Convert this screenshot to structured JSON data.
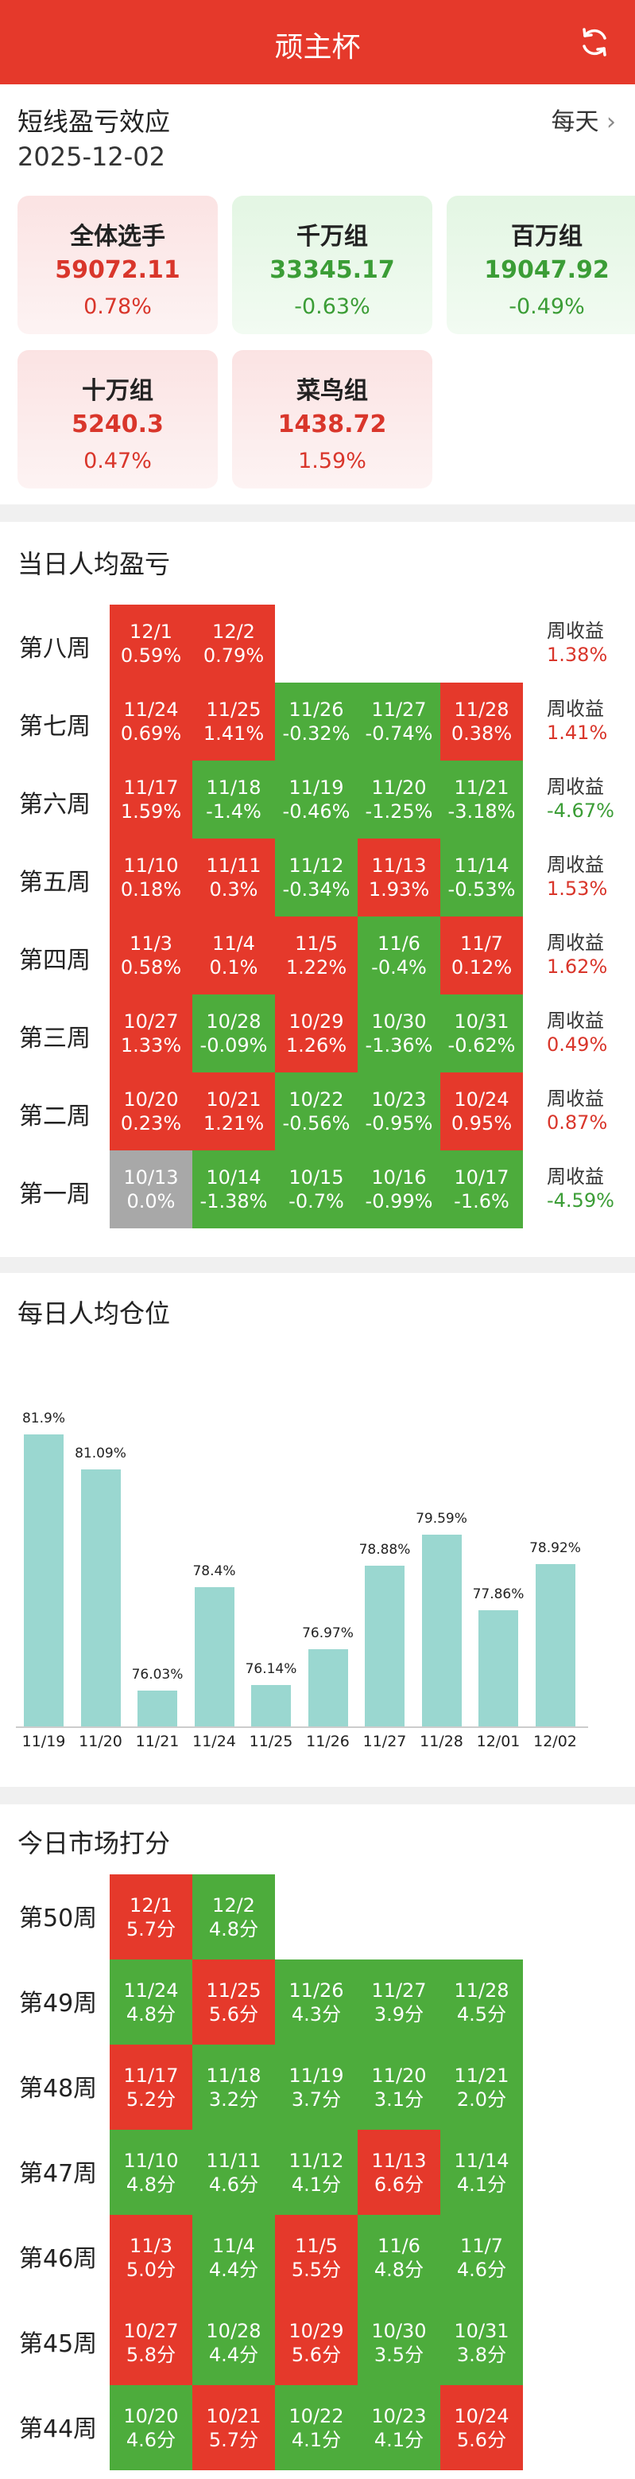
{
  "header": {
    "title": "顽主杯",
    "refresh_icon": "refresh-icon"
  },
  "summary": {
    "title": "短线盈亏效应",
    "date": "2025-12-02",
    "period": "每天",
    "groups": [
      {
        "name": "全体选手",
        "value": "59072.11",
        "pct": "0.78%",
        "dir": "up"
      },
      {
        "name": "千万组",
        "value": "33345.17",
        "pct": "-0.63%",
        "dir": "down"
      },
      {
        "name": "百万组",
        "value": "19047.92",
        "pct": "-0.49%",
        "dir": "down"
      },
      {
        "name": "十万组",
        "value": "5240.3",
        "pct": "0.47%",
        "dir": "up"
      },
      {
        "name": "菜鸟组",
        "value": "1438.72",
        "pct": "1.59%",
        "dir": "up"
      }
    ]
  },
  "pnl": {
    "title": "当日人均盈亏",
    "week_label": "周收益",
    "weeks": [
      {
        "name": "第八周",
        "total": "1.38%",
        "dir": "up",
        "days": [
          [
            "12/1",
            "0.59%",
            "up"
          ],
          [
            "12/2",
            "0.79%",
            "up"
          ]
        ]
      },
      {
        "name": "第七周",
        "total": "1.41%",
        "dir": "up",
        "days": [
          [
            "11/24",
            "0.69%",
            "up"
          ],
          [
            "11/25",
            "1.41%",
            "up"
          ],
          [
            "11/26",
            "-0.32%",
            "down"
          ],
          [
            "11/27",
            "-0.74%",
            "down"
          ],
          [
            "11/28",
            "0.38%",
            "up"
          ]
        ]
      },
      {
        "name": "第六周",
        "total": "-4.67%",
        "dir": "down",
        "days": [
          [
            "11/17",
            "1.59%",
            "up"
          ],
          [
            "11/18",
            "-1.4%",
            "down"
          ],
          [
            "11/19",
            "-0.46%",
            "down"
          ],
          [
            "11/20",
            "-1.25%",
            "down"
          ],
          [
            "11/21",
            "-3.18%",
            "down"
          ]
        ]
      },
      {
        "name": "第五周",
        "total": "1.53%",
        "dir": "up",
        "days": [
          [
            "11/10",
            "0.18%",
            "up"
          ],
          [
            "11/11",
            "0.3%",
            "up"
          ],
          [
            "11/12",
            "-0.34%",
            "down"
          ],
          [
            "11/13",
            "1.93%",
            "up"
          ],
          [
            "11/14",
            "-0.53%",
            "down"
          ]
        ]
      },
      {
        "name": "第四周",
        "total": "1.62%",
        "dir": "up",
        "days": [
          [
            "11/3",
            "0.58%",
            "up"
          ],
          [
            "11/4",
            "0.1%",
            "up"
          ],
          [
            "11/5",
            "1.22%",
            "up"
          ],
          [
            "11/6",
            "-0.4%",
            "down"
          ],
          [
            "11/7",
            "0.12%",
            "up"
          ]
        ]
      },
      {
        "name": "第三周",
        "total": "0.49%",
        "dir": "up",
        "days": [
          [
            "10/27",
            "1.33%",
            "up"
          ],
          [
            "10/28",
            "-0.09%",
            "down"
          ],
          [
            "10/29",
            "1.26%",
            "up"
          ],
          [
            "10/30",
            "-1.36%",
            "down"
          ],
          [
            "10/31",
            "-0.62%",
            "down"
          ]
        ]
      },
      {
        "name": "第二周",
        "total": "0.87%",
        "dir": "up",
        "days": [
          [
            "10/20",
            "0.23%",
            "up"
          ],
          [
            "10/21",
            "1.21%",
            "up"
          ],
          [
            "10/22",
            "-0.56%",
            "down"
          ],
          [
            "10/23",
            "-0.95%",
            "down"
          ],
          [
            "10/24",
            "0.95%",
            "up"
          ]
        ]
      },
      {
        "name": "第一周",
        "total": "-4.59%",
        "dir": "down",
        "days": [
          [
            "10/13",
            "0.0%",
            "flat"
          ],
          [
            "10/14",
            "-1.38%",
            "down"
          ],
          [
            "10/15",
            "-0.7%",
            "down"
          ],
          [
            "10/16",
            "-0.99%",
            "down"
          ],
          [
            "10/17",
            "-1.6%",
            "down"
          ]
        ]
      }
    ]
  },
  "position": {
    "title": "每日人均仓位",
    "chart_data": {
      "type": "bar",
      "categories": [
        "11/19",
        "11/20",
        "11/21",
        "11/24",
        "11/25",
        "11/26",
        "11/27",
        "11/28",
        "12/01",
        "12/02"
      ],
      "values": [
        81.9,
        81.09,
        76.03,
        78.4,
        76.14,
        76.97,
        78.88,
        79.59,
        77.86,
        78.92
      ],
      "labels": [
        "81.9%",
        "81.09%",
        "76.03%",
        "78.4%",
        "76.14%",
        "76.97%",
        "78.88%",
        "79.59%",
        "77.86%",
        "78.92%"
      ],
      "ylim": [
        75.2,
        82.5
      ],
      "color": "#9ad7d0"
    }
  },
  "score": {
    "title": "今日市场打分",
    "weeks": [
      {
        "name": "第50周",
        "days": [
          [
            "12/1",
            "5.7分",
            "up"
          ],
          [
            "12/2",
            "4.8分",
            "down"
          ]
        ]
      },
      {
        "name": "第49周",
        "days": [
          [
            "11/24",
            "4.8分",
            "down"
          ],
          [
            "11/25",
            "5.6分",
            "up"
          ],
          [
            "11/26",
            "4.3分",
            "down"
          ],
          [
            "11/27",
            "3.9分",
            "down"
          ],
          [
            "11/28",
            "4.5分",
            "down"
          ]
        ]
      },
      {
        "name": "第48周",
        "days": [
          [
            "11/17",
            "5.2分",
            "up"
          ],
          [
            "11/18",
            "3.2分",
            "down"
          ],
          [
            "11/19",
            "3.7分",
            "down"
          ],
          [
            "11/20",
            "3.1分",
            "down"
          ],
          [
            "11/21",
            "2.0分",
            "down"
          ]
        ]
      },
      {
        "name": "第47周",
        "days": [
          [
            "11/10",
            "4.8分",
            "down"
          ],
          [
            "11/11",
            "4.6分",
            "down"
          ],
          [
            "11/12",
            "4.1分",
            "down"
          ],
          [
            "11/13",
            "6.6分",
            "up"
          ],
          [
            "11/14",
            "4.1分",
            "down"
          ]
        ]
      },
      {
        "name": "第46周",
        "days": [
          [
            "11/3",
            "5.0分",
            "up"
          ],
          [
            "11/4",
            "4.4分",
            "down"
          ],
          [
            "11/5",
            "5.5分",
            "up"
          ],
          [
            "11/6",
            "4.8分",
            "down"
          ],
          [
            "11/7",
            "4.6分",
            "down"
          ]
        ]
      },
      {
        "name": "第45周",
        "days": [
          [
            "10/27",
            "5.8分",
            "up"
          ],
          [
            "10/28",
            "4.4分",
            "down"
          ],
          [
            "10/29",
            "5.6分",
            "up"
          ],
          [
            "10/30",
            "3.5分",
            "down"
          ],
          [
            "10/31",
            "3.8分",
            "down"
          ]
        ]
      },
      {
        "name": "第44周",
        "days": [
          [
            "10/20",
            "4.6分",
            "down"
          ],
          [
            "10/21",
            "5.7分",
            "up"
          ],
          [
            "10/22",
            "4.1分",
            "down"
          ],
          [
            "10/23",
            "4.1分",
            "down"
          ],
          [
            "10/24",
            "5.6分",
            "up"
          ]
        ]
      }
    ]
  }
}
